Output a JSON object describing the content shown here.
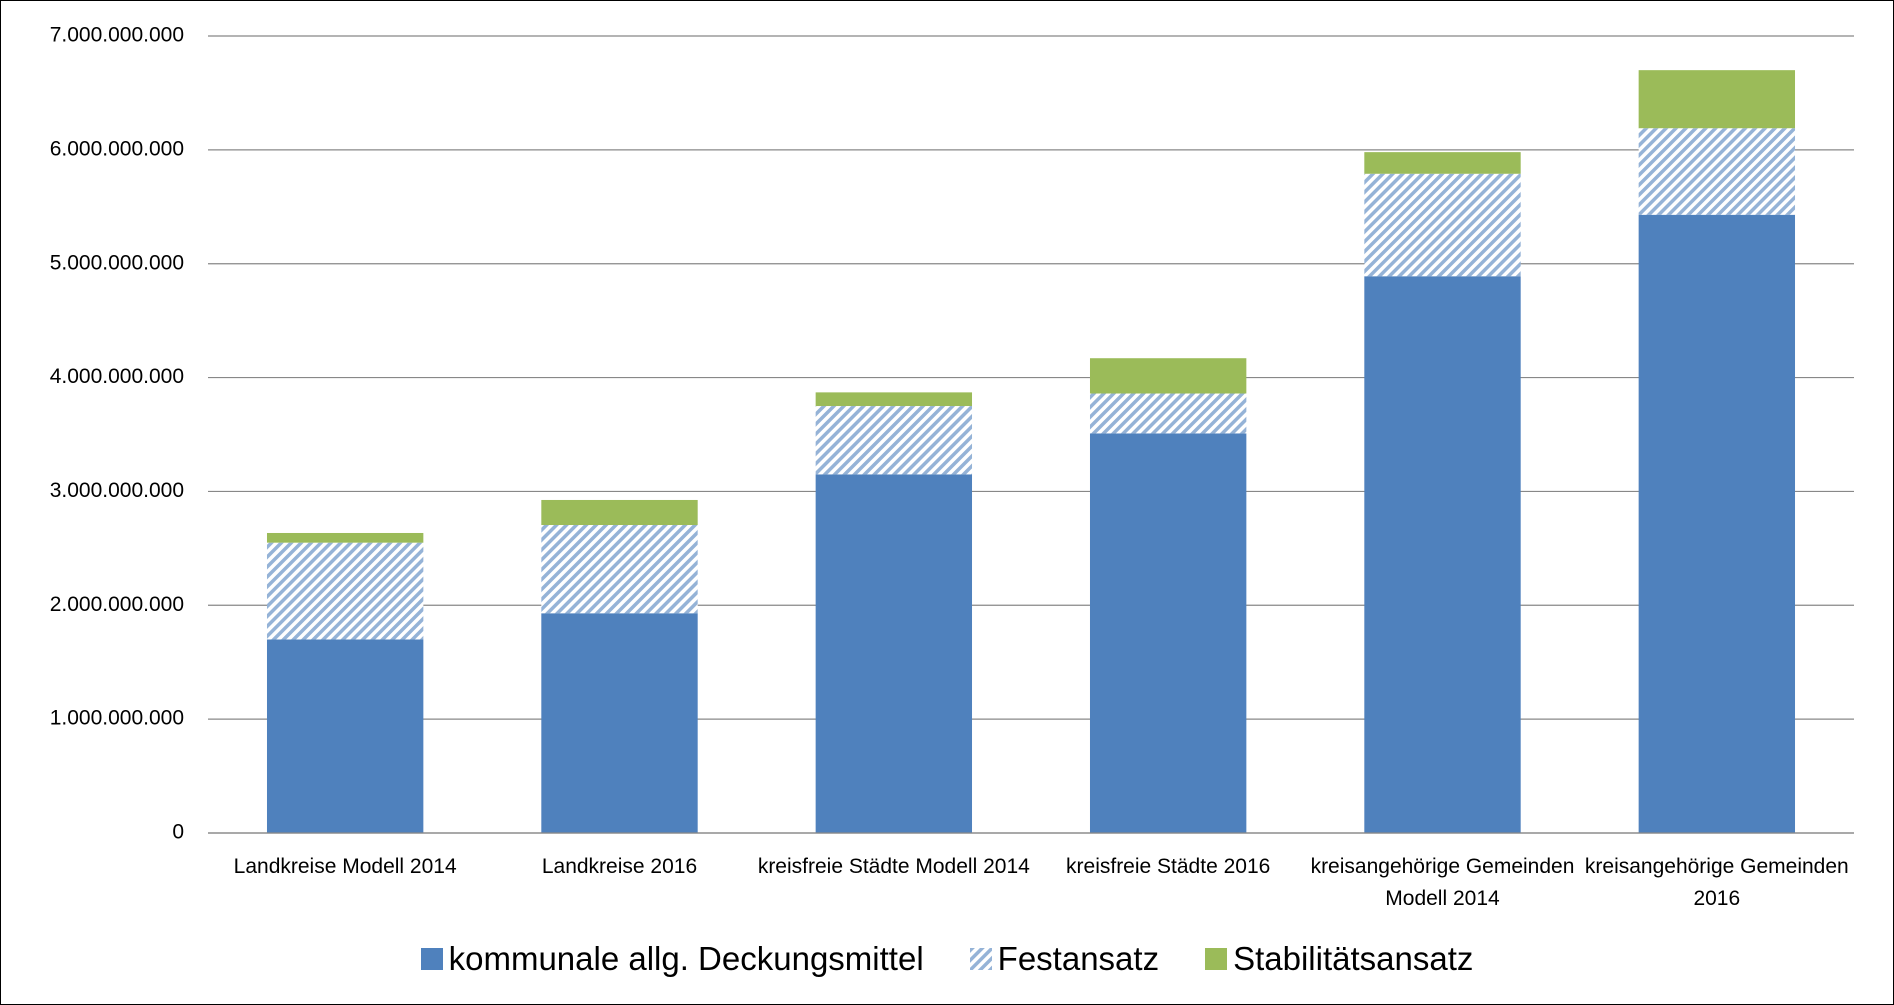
{
  "chart_data": {
    "type": "stacked-bar",
    "categories": [
      "Landkreise Modell 2014",
      "Landkreise 2016",
      "kreisfreie Städte Modell 2014",
      "kreisfreie Städte 2016",
      "kreisangehörige Gemeinden Modell 2014",
      "kreisangehörige Gemeinden 2016"
    ],
    "series": [
      {
        "name": "kommunale allg. Deckungsmittel",
        "color": "#4f81bd",
        "values": [
          1700000000,
          1930000000,
          3150000000,
          3510000000,
          4890000000,
          5430000000
        ]
      },
      {
        "name": "Festansatz",
        "color": "#95b3d7",
        "pattern": "diagonal-hatch",
        "values": [
          850000000,
          775000000,
          600000000,
          350000000,
          900000000,
          760000000
        ]
      },
      {
        "name": "Stabilitätsansatz",
        "color": "#9bbb59",
        "values": [
          85000000,
          220000000,
          120000000,
          310000000,
          190000000,
          510000000
        ]
      }
    ],
    "ylim": [
      0,
      7000000000
    ],
    "yticks": [
      0,
      {
        "value": 1000000000,
        "label": "1.000.000.000"
      },
      {
        "value": 2000000000,
        "label": "2.000.000.000"
      },
      {
        "value": 3000000000,
        "label": "3.000.000.000"
      },
      {
        "value": 4000000000,
        "label": "4.000.000.000"
      },
      {
        "value": 5000000000,
        "label": "5.000.000.000"
      },
      {
        "value": 6000000000,
        "label": "6.000.000.000"
      },
      {
        "value": 7000000000,
        "label": "7.000.000.000"
      }
    ],
    "grid": true,
    "legend": "bottom"
  }
}
